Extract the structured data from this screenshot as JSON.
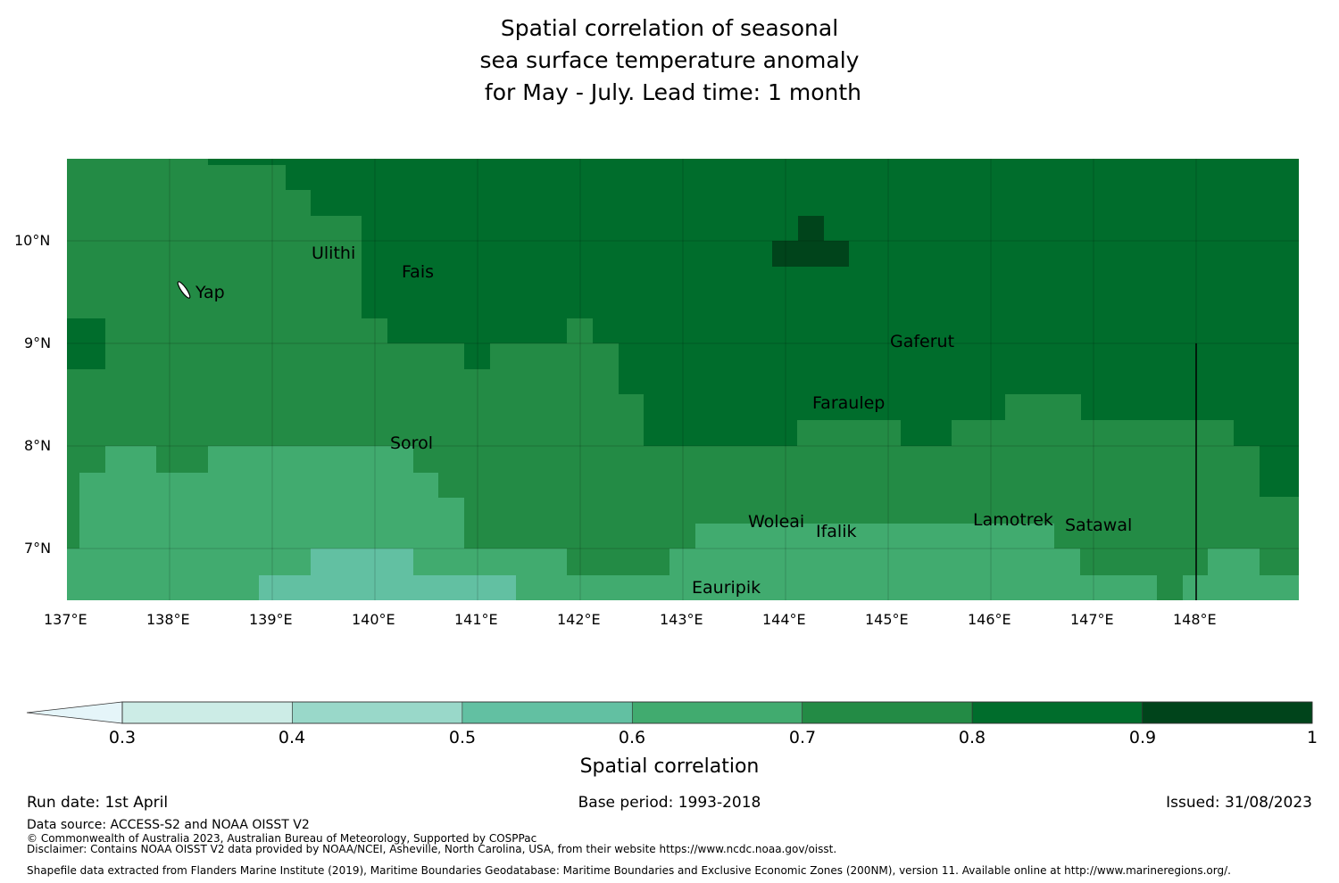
{
  "title": {
    "lines": [
      "Spatial correlation of seasonal",
      "sea surface temperature anomaly",
      " for May - July. Lead time: 1 month"
    ]
  },
  "map": {
    "lon_range": [
      137,
      149
    ],
    "lat_range": [
      6.5,
      10.8
    ],
    "lon_ticks": [
      "137°E",
      "138°E",
      "139°E",
      "140°E",
      "141°E",
      "142°E",
      "143°E",
      "144°E",
      "145°E",
      "146°E",
      "147°E",
      "148°E"
    ],
    "lat_ticks": [
      "10°N",
      "9°N",
      "8°N",
      "7°N"
    ],
    "gridlines": true,
    "colors": {
      "c06": "#41ab6f",
      "c05": "#62c0a2",
      "c07": "#238b45",
      "c08": "#006d2c",
      "c09": "#00441b"
    },
    "places": [
      {
        "name": "Ulithi"
      },
      {
        "name": "Fais"
      },
      {
        "name": "Yap"
      },
      {
        "name": "Gaferut"
      },
      {
        "name": "Faraulep"
      },
      {
        "name": "Sorol"
      },
      {
        "name": "Woleai"
      },
      {
        "name": "Ifalik"
      },
      {
        "name": "Lamotrek"
      },
      {
        "name": "Satawal"
      },
      {
        "name": "Eauripik"
      }
    ]
  },
  "colorbar": {
    "label": "Spatial correlation",
    "ticks": [
      "0.3",
      "0.4",
      "0.5",
      "0.6",
      "0.7",
      "0.8",
      "0.9",
      "1"
    ],
    "colors": [
      "#e5f5f9",
      "#ccece6",
      "#99d8c9",
      "#62c0a2",
      "#41ab6f",
      "#238b45",
      "#006d2c",
      "#00441b"
    ]
  },
  "footer": {
    "run_date": "Run date: 1st April",
    "base_period": "Base period: 1993-2018",
    "issued": "Issued: 31/08/2023",
    "data_source": "Data source: ACCESS-S2 and NOAA OISST V2",
    "copyright": "© Commonwealth of Australia 2023, Australian Bureau of Meteorology, Supported by COSPPac",
    "disclaimer": "Disclaimer: Contains NOAA OISST V2 data provided by NOAA/NCEI, Asheville, North Carolina, USA, from their website https://www.ncdc.noaa.gov/oisst.",
    "shapefile": "Shapefile data extracted from Flanders Marine Institute (2019), Maritime Boundaries Geodatabase: Maritime Boundaries and Exclusive Economic Zones (200NM), version 11. Available online at http://www.marineregions.org/."
  }
}
